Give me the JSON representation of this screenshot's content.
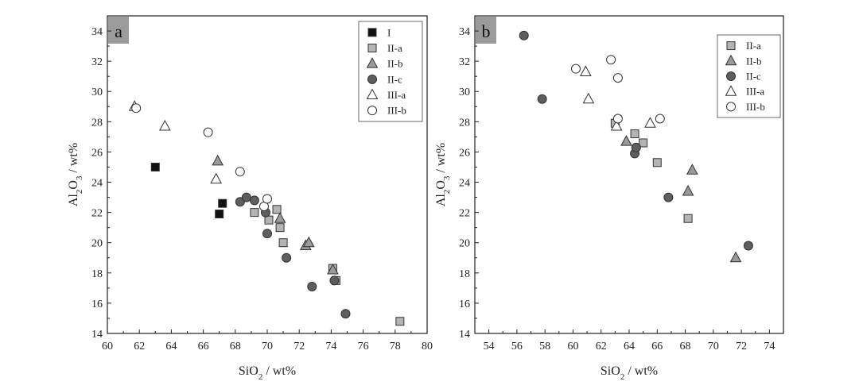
{
  "colors": {
    "I": "#111111",
    "II-a": "#b4b4b4",
    "II-b": "#9a9a9a",
    "II-c": "#5e5e5e",
    "III-a": "#ffffff",
    "III-b": "#ffffff",
    "panel_label_bg": "#9b9b9b"
  },
  "chart_data": [
    {
      "type": "scatter",
      "panel_label": "a",
      "xlabel": "SiO2 / wt%",
      "ylabel": "Al2O3 / wt%",
      "xlim": [
        60,
        80
      ],
      "ylim": [
        14,
        35
      ],
      "xticks": [
        60,
        62,
        64,
        66,
        68,
        70,
        72,
        74,
        76,
        78,
        80
      ],
      "yticks": [
        14,
        16,
        18,
        20,
        22,
        24,
        26,
        28,
        30,
        32,
        34
      ],
      "grid": false,
      "legend_position": "top-right",
      "series": [
        {
          "name": "I",
          "marker": "square",
          "fill": "I",
          "points": [
            [
              63.0,
              25.0
            ],
            [
              67.0,
              21.9
            ],
            [
              67.2,
              22.6
            ]
          ]
        },
        {
          "name": "II-a",
          "marker": "square",
          "fill": "II-a",
          "points": [
            [
              69.2,
              22.0
            ],
            [
              70.1,
              21.5
            ],
            [
              70.6,
              22.2
            ],
            [
              70.8,
              21.0
            ],
            [
              71.0,
              20.0
            ],
            [
              74.1,
              18.3
            ],
            [
              74.3,
              17.5
            ],
            [
              78.3,
              14.8
            ]
          ]
        },
        {
          "name": "II-b",
          "marker": "triangle",
          "fill": "II-b",
          "points": [
            [
              66.9,
              25.4
            ],
            [
              70.8,
              21.6
            ],
            [
              72.4,
              19.8
            ],
            [
              72.6,
              20.0
            ],
            [
              74.1,
              18.2
            ]
          ]
        },
        {
          "name": "II-c",
          "marker": "circle",
          "fill": "II-c",
          "points": [
            [
              68.3,
              22.7
            ],
            [
              68.7,
              23.0
            ],
            [
              69.2,
              22.8
            ],
            [
              69.9,
              22.0
            ],
            [
              70.0,
              20.6
            ],
            [
              71.2,
              19.0
            ],
            [
              72.8,
              17.1
            ],
            [
              74.2,
              17.5
            ],
            [
              74.9,
              15.3
            ]
          ]
        },
        {
          "name": "III-a",
          "marker": "triangle",
          "fill": "III-a",
          "points": [
            [
              61.7,
              29.0
            ],
            [
              63.6,
              27.7
            ],
            [
              66.8,
              24.2
            ]
          ]
        },
        {
          "name": "III-b",
          "marker": "circle",
          "fill": "III-b",
          "points": [
            [
              61.8,
              28.9
            ],
            [
              66.3,
              27.3
            ],
            [
              68.3,
              24.7
            ],
            [
              69.8,
              22.4
            ],
            [
              70.0,
              22.9
            ]
          ]
        }
      ]
    },
    {
      "type": "scatter",
      "panel_label": "b",
      "xlabel": "SiO2 / wt%",
      "ylabel": "Al2O3 / wt%",
      "xlim": [
        53,
        75
      ],
      "ylim": [
        14,
        35
      ],
      "xticks": [
        54,
        56,
        58,
        60,
        62,
        64,
        66,
        68,
        70,
        72,
        74
      ],
      "yticks": [
        14,
        16,
        18,
        20,
        22,
        24,
        26,
        28,
        30,
        32,
        34
      ],
      "grid": false,
      "legend_position": "top-right",
      "series": [
        {
          "name": "II-a",
          "marker": "square",
          "fill": "II-a",
          "points": [
            [
              63.0,
              27.9
            ],
            [
              64.4,
              27.2
            ],
            [
              65.0,
              26.6
            ],
            [
              66.0,
              25.3
            ],
            [
              68.2,
              21.6
            ]
          ]
        },
        {
          "name": "II-b",
          "marker": "triangle",
          "fill": "II-b",
          "points": [
            [
              63.8,
              26.7
            ],
            [
              68.2,
              23.4
            ],
            [
              68.5,
              24.8
            ],
            [
              71.6,
              19.0
            ]
          ]
        },
        {
          "name": "II-c",
          "marker": "circle",
          "fill": "II-c",
          "points": [
            [
              56.5,
              33.7
            ],
            [
              57.8,
              29.5
            ],
            [
              64.4,
              25.9
            ],
            [
              64.5,
              26.3
            ],
            [
              66.8,
              23.0
            ],
            [
              72.5,
              19.8
            ]
          ]
        },
        {
          "name": "III-a",
          "marker": "triangle",
          "fill": "III-a",
          "points": [
            [
              60.9,
              31.3
            ],
            [
              61.1,
              29.5
            ],
            [
              63.1,
              27.7
            ],
            [
              65.5,
              27.9
            ]
          ]
        },
        {
          "name": "III-b",
          "marker": "circle",
          "fill": "III-b",
          "points": [
            [
              60.2,
              31.5
            ],
            [
              62.7,
              32.1
            ],
            [
              63.2,
              30.9
            ],
            [
              63.2,
              28.2
            ],
            [
              66.2,
              28.2
            ]
          ]
        }
      ]
    }
  ]
}
